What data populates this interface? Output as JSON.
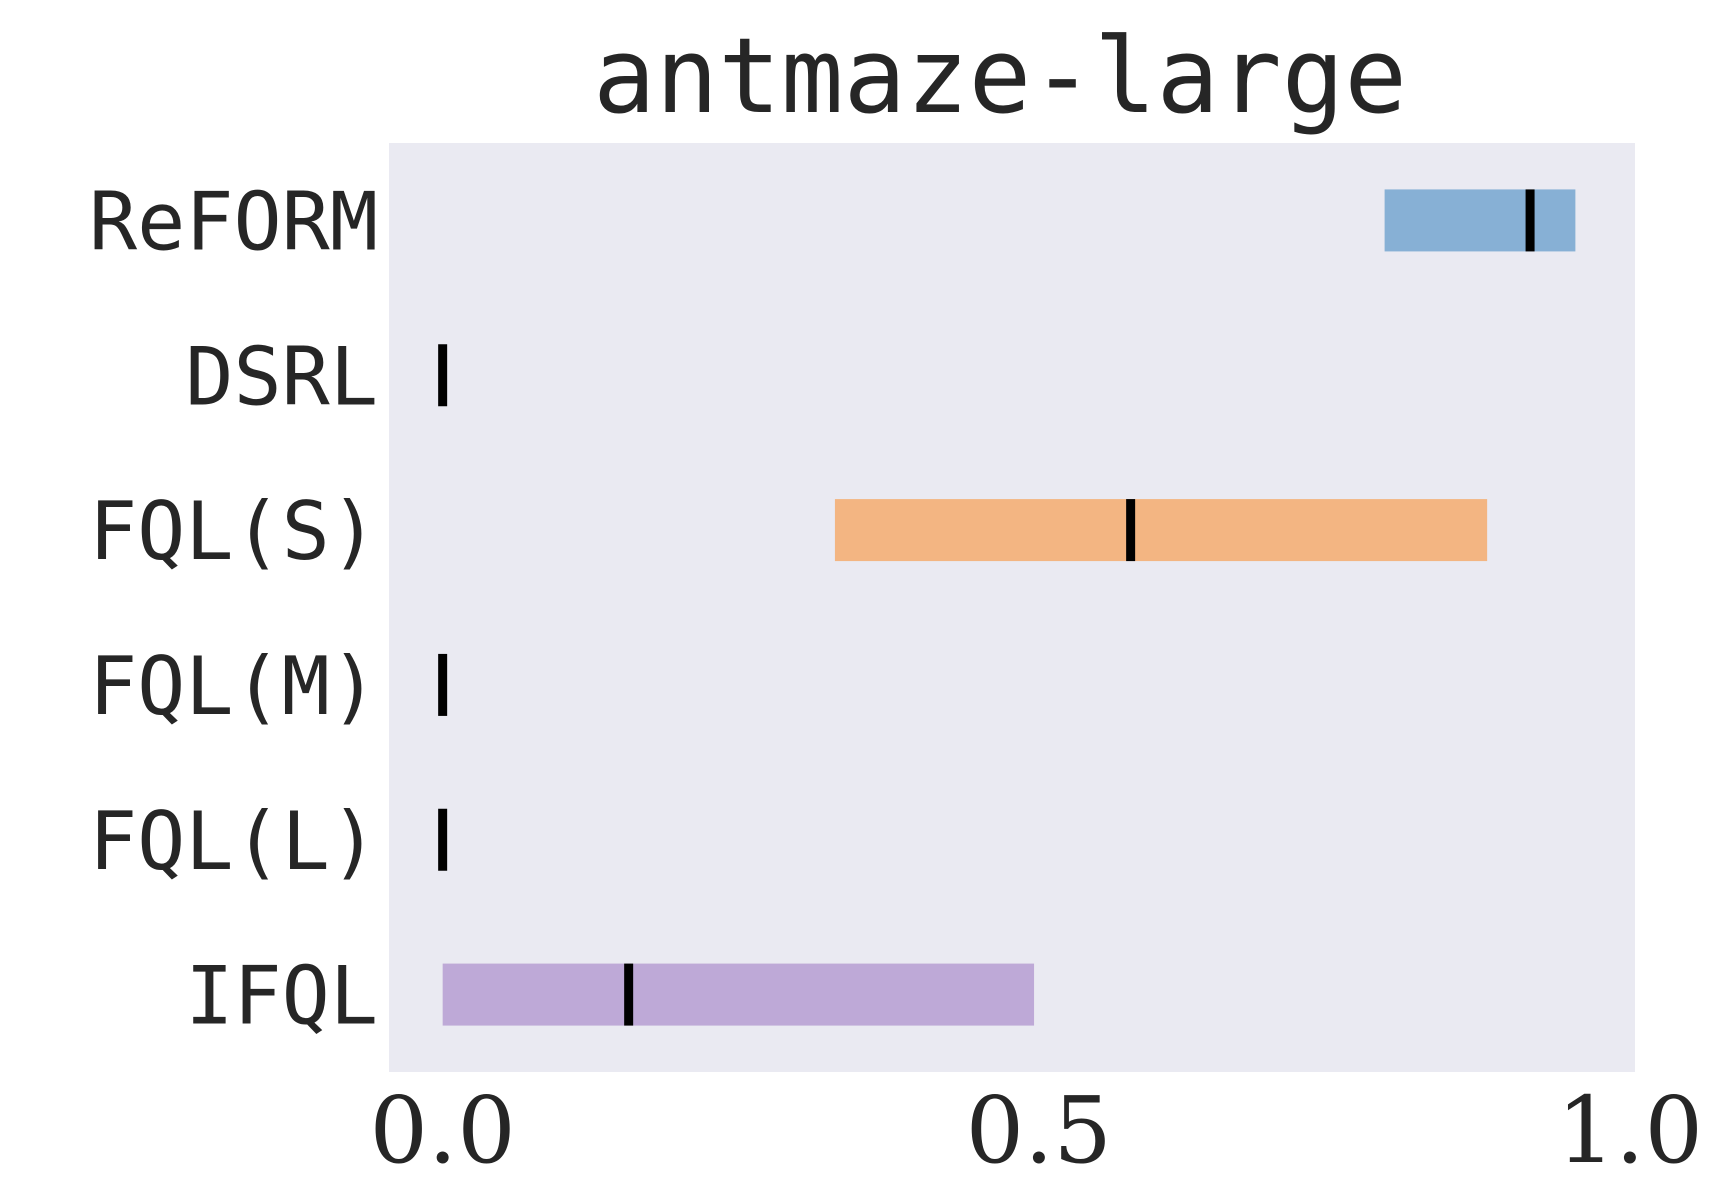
{
  "chart_data": {
    "type": "bar",
    "subtype": "horizontal-range",
    "title": "antmaze-large",
    "xlabel": "",
    "ylabel": "",
    "xlim": [
      -0.045,
      1.0
    ],
    "x_ticks": [
      "0.0",
      "0.5",
      "1.0"
    ],
    "x_tick_values": [
      0.0,
      0.5,
      1.0
    ],
    "grid": false,
    "background": "#eaeaf2",
    "median_color": "#000000",
    "categories": [
      "ReFORM",
      "DSRL",
      "FQL(S)",
      "FQL(M)",
      "FQL(L)",
      "IFQL"
    ],
    "series": [
      {
        "low": 0.79,
        "high": 0.95,
        "median": 0.912,
        "color": "#87b0d5"
      },
      {
        "low": 0.0,
        "high": 0.0,
        "median": 0.0,
        "color": "#87b0d5"
      },
      {
        "low": 0.329,
        "high": 0.876,
        "median": 0.577,
        "color": "#f3b582"
      },
      {
        "low": 0.0,
        "high": 0.0,
        "median": 0.0,
        "color": "#87b0d5"
      },
      {
        "low": 0.0,
        "high": 0.0,
        "median": 0.0,
        "color": "#87b0d5"
      },
      {
        "low": 0.0,
        "high": 0.496,
        "median": 0.156,
        "color": "#bea9d7"
      }
    ]
  }
}
